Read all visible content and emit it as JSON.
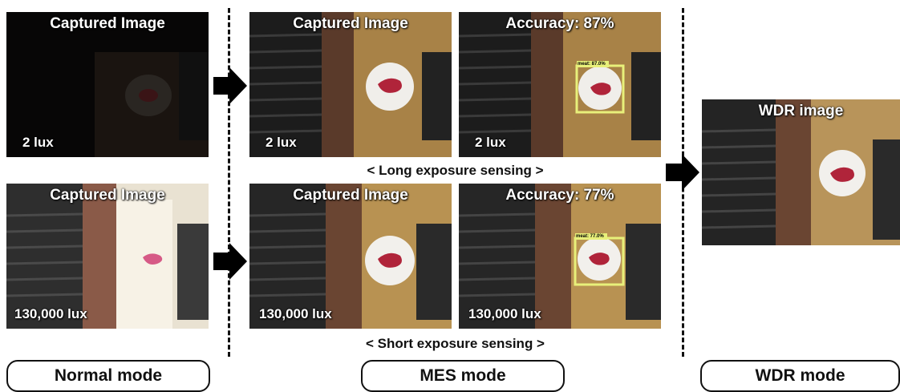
{
  "normal": {
    "top": {
      "title": "Captured Image",
      "lux": "2 lux"
    },
    "bottom": {
      "title": "Captured Image",
      "lux": "130,000 lux"
    }
  },
  "mes": {
    "long_captured": {
      "title": "Captured Image",
      "lux": "2 lux"
    },
    "long_detect": {
      "title": "Accuracy: 87%",
      "lux": "2 lux",
      "box_label": "meat: 87.0%"
    },
    "short_captured": {
      "title": "Captured Image",
      "lux": "130,000 lux"
    },
    "short_detect": {
      "title": "Accuracy: 77%",
      "lux": "130,000 lux",
      "box_label": "meat: 77.0%"
    },
    "long_caption": "< Long exposure sensing >",
    "short_caption": "< Short exposure sensing >"
  },
  "wdr": {
    "title": "WDR image"
  },
  "modes": {
    "normal": "Normal mode",
    "mes": "MES mode",
    "wdr": "WDR mode"
  },
  "colors": {
    "detection_box": "#e8f07a",
    "food": "#b0243a",
    "plate": "#f0eeea"
  }
}
